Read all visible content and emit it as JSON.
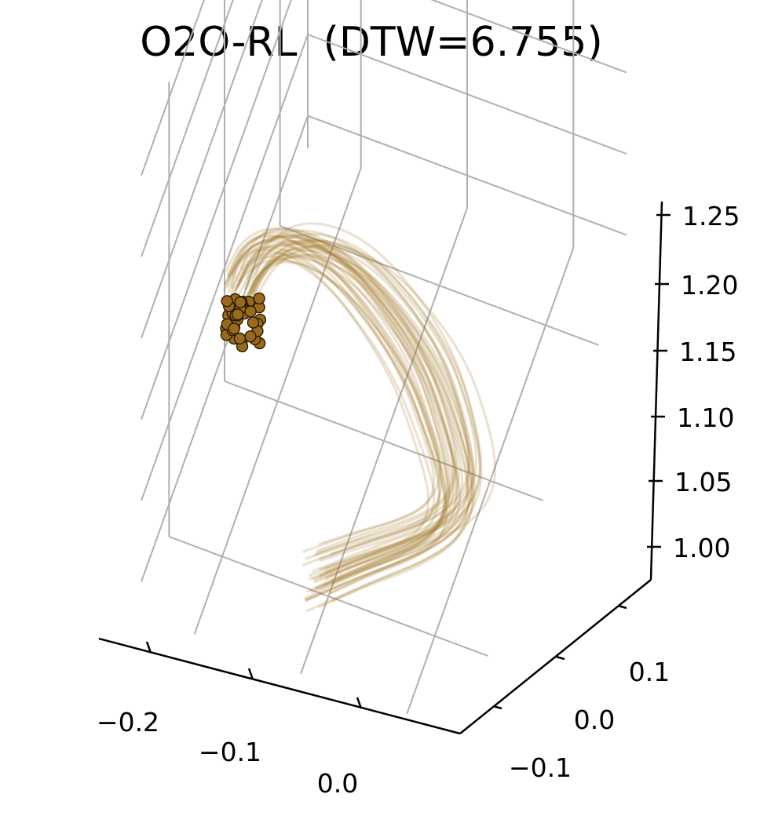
{
  "chart_data": {
    "type": "line3d",
    "title": "O2O-RL  (DTW=6.755)",
    "x_ticks": [
      "−0.2",
      "−0.1",
      "0.0"
    ],
    "y_ticks": [
      "−0.1",
      "0.0",
      "0.1"
    ],
    "z_ticks": [
      "1.00",
      "1.05",
      "1.10",
      "1.15",
      "1.20",
      "1.25"
    ],
    "xlim": [
      -0.25,
      0.05
    ],
    "ylim": [
      -0.15,
      0.15
    ],
    "zlim": [
      0.98,
      1.26
    ],
    "grid": true,
    "series_count": 40,
    "series_template": {
      "x": [
        0.01,
        0.0,
        -0.02,
        -0.05,
        -0.08,
        -0.12,
        -0.155,
        -0.185,
        -0.2
      ],
      "y": [
        -0.05,
        -0.045,
        -0.035,
        -0.02,
        -0.005,
        0.01,
        0.025,
        0.035,
        0.04
      ],
      "z": [
        1.0,
        1.04,
        1.09,
        1.14,
        1.19,
        1.225,
        1.235,
        1.225,
        1.195
      ]
    },
    "line_color": "#a57b2c",
    "end_marker_color": "#9a6a1c",
    "end_marker_edge": "#2a1a05"
  }
}
